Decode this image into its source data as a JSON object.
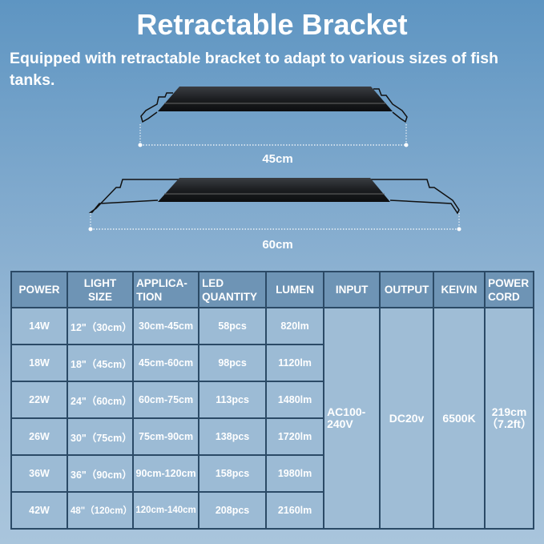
{
  "title": "Retractable Bracket",
  "subtitle": "Equipped with retractable bracket to adapt to various sizes of fish tanks.",
  "dimensions": {
    "small": "45cm",
    "large": "60cm"
  },
  "table": {
    "headers": [
      "POWER",
      "LIGHT SIZE",
      "APPLICA-TION",
      "LED QUANTITY",
      "LUMEN",
      "INPUT",
      "OUTPUT",
      "KEIVIN",
      "POWER CORD"
    ],
    "rows": [
      [
        "14W",
        "12\"（30cm）",
        "30cm-45cm",
        "58pcs",
        "820lm"
      ],
      [
        "18W",
        "18\"（45cm）",
        "45cm-60cm",
        "98pcs",
        "1120lm"
      ],
      [
        "22W",
        "24\"（60cm）",
        "60cm-75cm",
        "113pcs",
        "1480lm"
      ],
      [
        "26W",
        "30\"（75cm）",
        "75cm-90cm",
        "138pcs",
        "1720lm"
      ],
      [
        "36W",
        "36\"（90cm）",
        "90cm-120cm",
        "158pcs",
        "1980lm"
      ],
      [
        "42W",
        "48\"（120cm）",
        "120cm-140cm",
        "208pcs",
        "2160lm"
      ]
    ],
    "shared": {
      "input": "AC100-240V",
      "output": "DC20v",
      "kelvin": "6500K",
      "power_cord": "219cm（7.2ft）"
    }
  },
  "colors": {
    "header_cell": "#6e94b5",
    "body_cell": "#9cbbd5",
    "border": "#2b4a66"
  }
}
